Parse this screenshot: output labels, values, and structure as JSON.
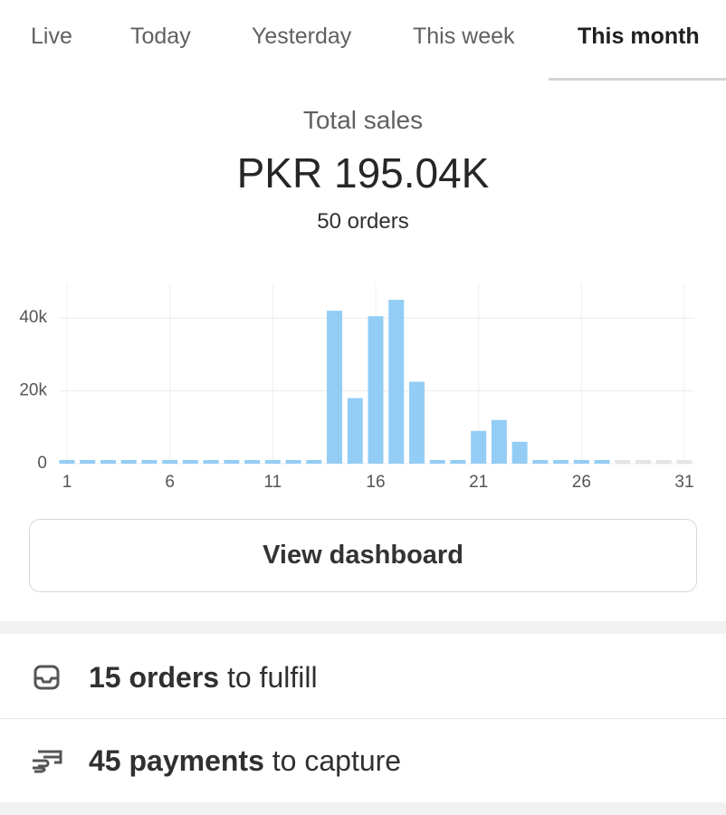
{
  "tabs": [
    "Live",
    "Today",
    "Yesterday",
    "This week",
    "This month"
  ],
  "summary": {
    "label": "Total sales",
    "amount": "PKR 195.04K",
    "orders": "50 orders"
  },
  "chart_data": {
    "type": "bar",
    "color": "#93cdf6",
    "grid": true,
    "categories": [
      1,
      null,
      null,
      null,
      null,
      6,
      null,
      null,
      null,
      null,
      11,
      null,
      null,
      null,
      null,
      16,
      null,
      null,
      null,
      null,
      21,
      null,
      null,
      null,
      null,
      26,
      null,
      null,
      null,
      null,
      31
    ],
    "values": [
      0,
      0,
      0,
      0,
      0,
      0,
      0,
      0,
      0,
      0,
      0,
      0,
      0,
      42000,
      18000,
      40500,
      45000,
      22500,
      0,
      0,
      9000,
      12000,
      6000,
      0,
      0,
      0,
      0,
      null,
      null,
      null,
      null
    ],
    "ylim": [
      0,
      49500
    ],
    "yticks": [
      0,
      {
        "value": 20000,
        "label": "20k"
      },
      {
        "value": 40000,
        "label": "40k"
      }
    ]
  },
  "button": "View dashboard",
  "tasks": [
    {
      "count": "15 orders",
      "text": "to fulfill"
    },
    {
      "count": "45 payments",
      "text": "to capture"
    }
  ]
}
